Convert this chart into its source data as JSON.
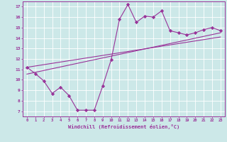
{
  "x": [
    0,
    1,
    2,
    3,
    4,
    5,
    6,
    7,
    8,
    9,
    10,
    11,
    12,
    13,
    14,
    15,
    16,
    17,
    18,
    19,
    20,
    21,
    22,
    23
  ],
  "y_upper": [
    11.2,
    10.6,
    9.9,
    8.7,
    9.3,
    8.5,
    7.1,
    7.1,
    7.1,
    9.4,
    11.9,
    15.8,
    17.2,
    15.5,
    16.1,
    16.0,
    16.6,
    14.7,
    14.5,
    14.3,
    14.5,
    14.8,
    15.0,
    14.7
  ],
  "trend1_x": [
    0,
    23
  ],
  "trend1_y": [
    10.55,
    14.5
  ],
  "trend2_x": [
    0,
    23
  ],
  "trend2_y": [
    11.2,
    14.1
  ],
  "xlabel": "Windchill (Refroidissement éolien,°C)",
  "xlim": [
    -0.5,
    23.5
  ],
  "ylim": [
    6.5,
    17.5
  ],
  "yticks": [
    7,
    8,
    9,
    10,
    11,
    12,
    13,
    14,
    15,
    16,
    17
  ],
  "xticks": [
    0,
    1,
    2,
    3,
    4,
    5,
    6,
    7,
    8,
    9,
    10,
    11,
    12,
    13,
    14,
    15,
    16,
    17,
    18,
    19,
    20,
    21,
    22,
    23
  ],
  "line_color": "#993399",
  "bg_color": "#cce8e8",
  "grid_color": "#aacccc",
  "marker": "D",
  "marker_size": 2.2,
  "line_width": 0.8
}
